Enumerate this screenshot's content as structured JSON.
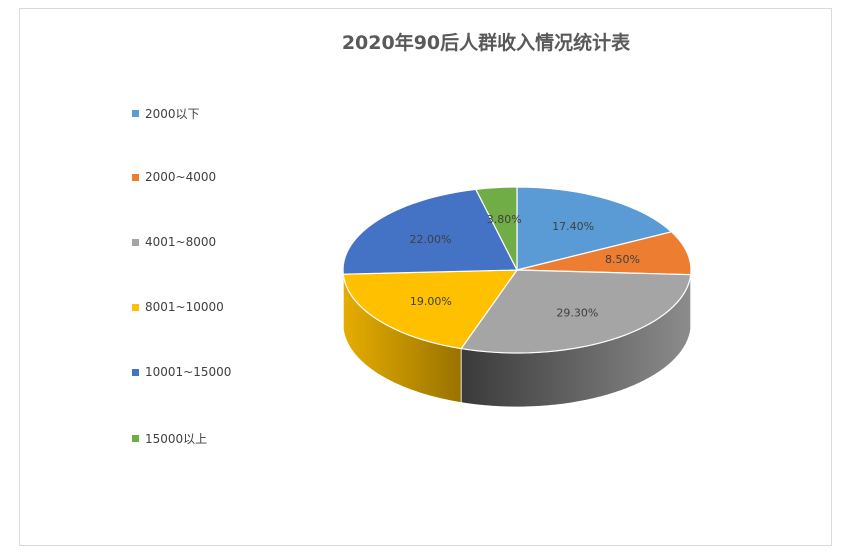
{
  "chart_data": {
    "type": "pie",
    "title": "2020年90后人群收入情况统计表",
    "categories": [
      "2000以下",
      "2000~4000",
      "4001~8000",
      "8001~10000",
      "10001~15000",
      "15000以上"
    ],
    "values": [
      17.4,
      8.5,
      29.3,
      19.0,
      22.0,
      3.8
    ],
    "value_labels": [
      "17.40%",
      "8.50%",
      "29.30%",
      "19.00%",
      "22.00%",
      "3.80%"
    ],
    "colors": [
      "#5b9bd5",
      "#ed7d31",
      "#a5a5a5",
      "#ffc000",
      "#4472c4",
      "#70ad47"
    ],
    "legend_position": "left",
    "style": "3d"
  }
}
